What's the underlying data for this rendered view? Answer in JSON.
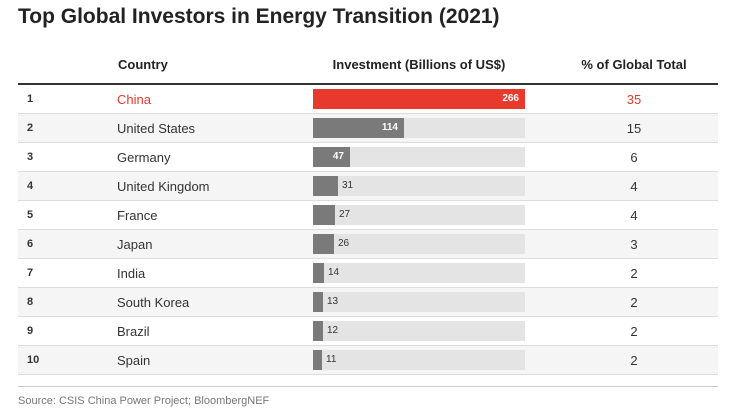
{
  "chart_data": {
    "type": "table",
    "title": "Top Global Investors in Energy Transition (2021)",
    "columns": [
      "Country",
      "Investment (Billions of US$)",
      "% of Global Total"
    ],
    "xlim": [
      0,
      266
    ],
    "highlight_color": "#e8392e",
    "bar_color": "#7a7a7a",
    "rows": [
      {
        "rank": "1",
        "country": "China",
        "investment": 266,
        "pct": "35",
        "highlight": true
      },
      {
        "rank": "2",
        "country": "United States",
        "investment": 114,
        "pct": "15",
        "highlight": false
      },
      {
        "rank": "3",
        "country": "Germany",
        "investment": 47,
        "pct": "6",
        "highlight": false
      },
      {
        "rank": "4",
        "country": "United Kingdom",
        "investment": 31,
        "pct": "4",
        "highlight": false
      },
      {
        "rank": "5",
        "country": "France",
        "investment": 27,
        "pct": "4",
        "highlight": false
      },
      {
        "rank": "6",
        "country": "Japan",
        "investment": 26,
        "pct": "3",
        "highlight": false
      },
      {
        "rank": "7",
        "country": "India",
        "investment": 14,
        "pct": "2",
        "highlight": false
      },
      {
        "rank": "8",
        "country": "South Korea",
        "investment": 13,
        "pct": "2",
        "highlight": false
      },
      {
        "rank": "9",
        "country": "Brazil",
        "investment": 12,
        "pct": "2",
        "highlight": false
      },
      {
        "rank": "10",
        "country": "Spain",
        "investment": 11,
        "pct": "2",
        "highlight": false
      }
    ],
    "source": "Source: CSIS China Power Project; BloombergNEF"
  }
}
